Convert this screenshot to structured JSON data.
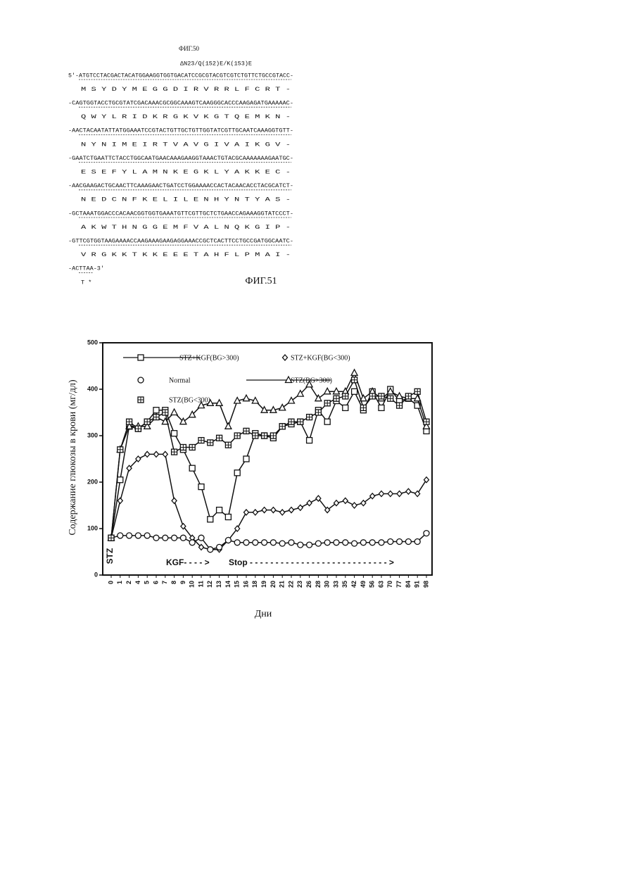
{
  "figure50": {
    "title": "ФИГ.50",
    "subtitle": "ΔN23/Q(152)E/K(153)E",
    "lines": [
      "5'-ATGTCCTACGACTACATGGAAGGTGGTGACATCCGCGTACGTCGTCTGTTCTGCCGTACC-",
      "M S Y D Y M E G G D I R V R R L F C R T -",
      "-CAGTGGTACCTGCGTATCGACAAACGCGGCAAAGTCAAGGGCACCCAAGAGATGAAAAAC-",
      "Q W Y L R I D K R G K V K G T Q E M K N -",
      "-AACTACAATATTATGGAAATCCGTACTGTTGCTGTTGGTATCGTTGCAATCAAAGGTGTT-",
      "N Y N I M E I R T V A V G I V A I K G V -",
      "-GAATCTGAATTCTACCTGGCAATGAACAAAGAAGGTAAACTGTACGCAAAAAAAGAATGC-",
      "E S E F Y L A M N K E G K L Y A K K E C -",
      "-AACGAAGACTGCAACTTCAAAGAACTGATCCTGGAAAACCACTACAACACCTACGCATCT-",
      "N E D C N F K E L I L E N H Y N T Y A S -",
      "-GCTAAATGGACCCACAACGGTGGTGAAATGTTCGTTGCTCTGAACCAGAAAGGTATCCCT-",
      "A K W T H N G G E M F V A L N Q K G I P -",
      "-GTTCGTGGTAAGAAAACCAAGAAAGAAGAGGAAACCGCTCACTTCCTGCCGATGGCAATC-",
      "V R G K K T K K E E E T A H F L P M A I -",
      "-ACTTAA-3'",
      "T *"
    ]
  },
  "chart_data": {
    "type": "line",
    "title": "ФИГ.51",
    "ylabel": "Содержание глюкозы в крови (мг/дл)",
    "xlabel": "Дни",
    "categories": [
      "0",
      "1",
      "2",
      "4",
      "5",
      "6",
      "7",
      "8",
      "9",
      "10",
      "11",
      "12",
      "13",
      "14",
      "15",
      "16",
      "18",
      "19",
      "20",
      "21",
      "22",
      "23",
      "26",
      "28",
      "30",
      "33",
      "35",
      "42",
      "49",
      "56",
      "63",
      "70",
      "77",
      "84",
      "91",
      "98"
    ],
    "ylim": [
      0,
      500
    ],
    "yticks": [
      0,
      100,
      200,
      300,
      400,
      500
    ],
    "annotations": [
      "STZ",
      "KGF- - - - >",
      "Stop - - - - - - - - - - - - - - - - - - - - - - - - - - - >"
    ],
    "series": [
      {
        "name": "STZ+KGF(BG>300)",
        "marker": "square",
        "color": "#111",
        "values": [
          80,
          205,
          320,
          315,
          330,
          355,
          355,
          305,
          270,
          230,
          190,
          120,
          140,
          125,
          220,
          250,
          305,
          300,
          295,
          320,
          325,
          330,
          290,
          355,
          330,
          375,
          360,
          395,
          355,
          395,
          360,
          400,
          375,
          380,
          365,
          310
        ]
      },
      {
        "name": "STZ+KGF(BG<300)",
        "marker": "diamond",
        "color": "#111",
        "values": [
          80,
          160,
          230,
          250,
          260,
          260,
          260,
          160,
          105,
          80,
          60,
          55,
          55,
          75,
          100,
          135,
          135,
          140,
          140,
          135,
          140,
          145,
          155,
          165,
          140,
          155,
          160,
          150,
          155,
          170,
          175,
          175,
          175,
          180,
          175,
          205
        ]
      },
      {
        "name": "Normal",
        "marker": "circle",
        "color": "#111",
        "values": [
          80,
          85,
          85,
          85,
          85,
          80,
          80,
          80,
          80,
          70,
          80,
          55,
          60,
          75,
          70,
          70,
          70,
          70,
          70,
          68,
          70,
          65,
          65,
          68,
          70,
          70,
          70,
          68,
          70,
          70,
          70,
          72,
          72,
          72,
          72,
          90
        ]
      },
      {
        "name": "STZ(BG>300)",
        "marker": "triangle",
        "color": "#111",
        "values": [
          80,
          270,
          320,
          320,
          320,
          340,
          330,
          350,
          330,
          345,
          365,
          370,
          370,
          320,
          375,
          380,
          375,
          355,
          355,
          360,
          375,
          390,
          410,
          380,
          395,
          395,
          395,
          435,
          380,
          395,
          380,
          395,
          385,
          380,
          380,
          320
        ]
      },
      {
        "name": "STZ(BG<300)",
        "marker": "boxed",
        "color": "#111",
        "values": [
          80,
          270,
          330,
          315,
          330,
          340,
          350,
          265,
          275,
          275,
          290,
          285,
          295,
          280,
          300,
          310,
          300,
          300,
          300,
          320,
          330,
          330,
          340,
          350,
          370,
          380,
          385,
          420,
          360,
          385,
          385,
          380,
          365,
          385,
          395,
          330
        ]
      }
    ]
  }
}
